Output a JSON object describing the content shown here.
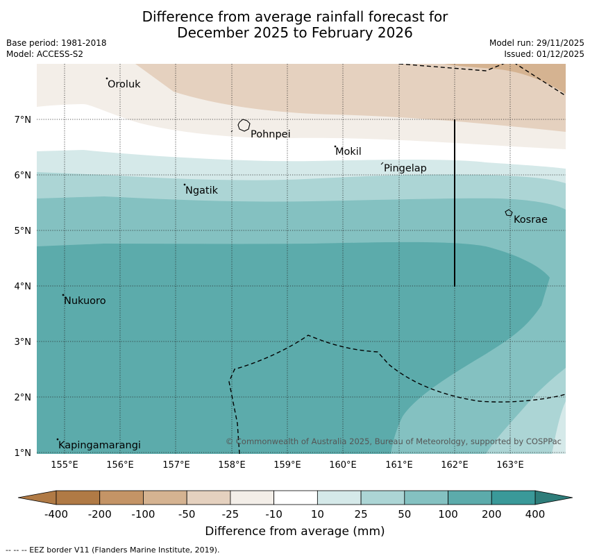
{
  "title_line1": "Difference from average rainfall forecast for",
  "title_line2": "December 2025 to February 2026",
  "meta": {
    "base_period": "Base period: 1981-2018",
    "model": "Model: ACCESS-S2",
    "model_run": "Model run: 29/11/2025",
    "issued": "Issued: 01/12/2025"
  },
  "axes": {
    "lat_labels": [
      "7°N",
      "6°N",
      "5°N",
      "4°N",
      "3°N",
      "2°N",
      "1°N"
    ],
    "lon_labels": [
      "155°E",
      "156°E",
      "157°E",
      "158°E",
      "159°E",
      "160°E",
      "161°E",
      "162°E",
      "163°E"
    ]
  },
  "places": [
    "Oroluk",
    "Pohnpei",
    "Mokil",
    "Pingelap",
    "Ngatik",
    "Kosrae",
    "Nukuoro",
    "Kapingamarangi"
  ],
  "copyright": "© Commonwealth of Australia 2025, Bureau of Meteorology, supported by COSPPac",
  "colorbar": {
    "ticks": [
      "-400",
      "-200",
      "-100",
      "-50",
      "-25",
      "-10",
      "10",
      "25",
      "50",
      "100",
      "200",
      "400"
    ],
    "colors": [
      "#b07a45",
      "#c49466",
      "#d5b391",
      "#e5d1bf",
      "#f3eee8",
      "#ffffff",
      "#d5e9e9",
      "#acd5d5",
      "#84c1c1",
      "#5cabab",
      "#3a9999"
    ],
    "label": "Difference from average (mm)"
  },
  "footnote": "--  --  -- EEZ border V11 (Flanders Marine Institute, 2019)."
}
